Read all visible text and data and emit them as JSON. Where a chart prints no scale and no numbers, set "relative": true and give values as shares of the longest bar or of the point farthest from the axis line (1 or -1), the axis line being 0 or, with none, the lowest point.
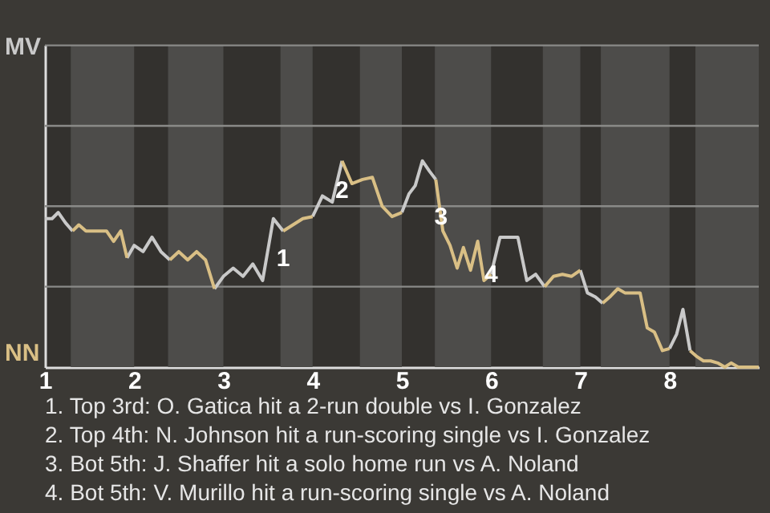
{
  "chart_data": {
    "type": "line",
    "relative": true,
    "x": [
      1,
      1.08,
      1.15,
      1.23,
      1.31,
      1.38,
      1.46,
      1.54,
      1.62,
      1.69,
      1.77,
      1.85,
      1.92,
      2,
      2.1,
      2.2,
      2.3,
      2.4,
      2.5,
      2.6,
      2.7,
      2.8,
      2.9,
      3,
      3.11,
      3.22,
      3.33,
      3.44,
      3.56,
      3.67,
      3.78,
      3.89,
      4,
      4.11,
      4.22,
      4.33,
      4.44,
      4.56,
      4.67,
      4.78,
      4.89,
      5,
      5.08,
      5.15,
      5.23,
      5.31,
      5.38,
      5.46,
      5.54,
      5.62,
      5.69,
      5.77,
      5.85,
      5.92,
      6,
      6.1,
      6.2,
      6.3,
      6.4,
      6.5,
      6.6,
      6.7,
      6.8,
      6.9,
      7,
      7.08,
      7.17,
      7.25,
      7.33,
      7.42,
      7.5,
      7.58,
      7.67,
      7.75,
      7.83,
      7.92,
      8,
      8.08,
      8.15,
      8.23,
      8.31,
      8.38,
      8.46,
      8.54,
      8.62,
      8.69,
      8.77,
      8.85,
      8.92,
      9
    ],
    "xlim": [
      1,
      9
    ],
    "xticks": [
      1,
      2,
      3,
      4,
      5,
      6,
      7,
      8
    ],
    "ref_lines": [
      {
        "axis": "y",
        "value": 0.39,
        "color": "#8a8a88"
      },
      {
        "axis": "y",
        "value": 0.78,
        "color": "#8a8a88"
      },
      {
        "axis": "y",
        "value": 1.17,
        "color": "#8a8a88"
      },
      {
        "axis": "y",
        "value": 1.56,
        "color": "#8a8a88"
      }
    ],
    "bands": [
      {
        "axis": "x",
        "from": 1.29,
        "to": 2,
        "color": "#4d4c4a"
      },
      {
        "axis": "x",
        "from": 2.38,
        "to": 3,
        "color": "#4d4c4a"
      },
      {
        "axis": "x",
        "from": 3.64,
        "to": 4,
        "color": "#4d4c4a"
      },
      {
        "axis": "x",
        "from": 4.53,
        "to": 5,
        "color": "#4d4c4a"
      },
      {
        "axis": "x",
        "from": 5.37,
        "to": 6,
        "color": "#4d4c4a"
      },
      {
        "axis": "x",
        "from": 6.58,
        "to": 7,
        "color": "#4d4c4a"
      },
      {
        "axis": "x",
        "from": 7.23,
        "to": 8,
        "color": "#4d4c4a"
      },
      {
        "axis": "x",
        "from": 8.29,
        "to": 9,
        "color": "#4d4c4a"
      }
    ],
    "series": [
      {
        "color": "#c9c9c9",
        "values": [
          0.72,
          0.72,
          0.75,
          0.7,
          0.66,
          null,
          null,
          null,
          null,
          null,
          null,
          null,
          0.53,
          0.59,
          0.56,
          0.63,
          0.56,
          0.52,
          null,
          null,
          null,
          null,
          0.38,
          0.44,
          0.48,
          0.44,
          0.5,
          0.42,
          0.72,
          0.66,
          null,
          null,
          0.73,
          0.83,
          0.8,
          1,
          null,
          null,
          null,
          null,
          null,
          0.75,
          0.84,
          0.88,
          1,
          0.95,
          0.91,
          null,
          null,
          null,
          null,
          null,
          null,
          null,
          0.45,
          0.63,
          0.63,
          0.63,
          0.42,
          0.45,
          0.39,
          null,
          null,
          null,
          0.47,
          0.36,
          0.34,
          0.31,
          null,
          null,
          null,
          null,
          null,
          null,
          null,
          null,
          0.09,
          0.16,
          0.28,
          0.08,
          null,
          null,
          null,
          null,
          null,
          null,
          null,
          null,
          null,
          null
        ]
      },
      {
        "color": "#d9bf85",
        "values": [
          null,
          null,
          null,
          null,
          0.66,
          0.69,
          0.66,
          0.66,
          0.66,
          0.66,
          0.61,
          0.66,
          0.53,
          null,
          null,
          null,
          null,
          0.52,
          0.56,
          0.52,
          0.56,
          0.52,
          0.38,
          null,
          null,
          null,
          null,
          null,
          null,
          0.66,
          0.69,
          0.72,
          0.73,
          null,
          null,
          1,
          0.89,
          0.91,
          0.92,
          0.78,
          0.73,
          0.75,
          null,
          null,
          null,
          null,
          0.91,
          0.66,
          0.59,
          0.48,
          0.58,
          0.47,
          0.61,
          0.42,
          0.45,
          null,
          null,
          null,
          null,
          null,
          0.39,
          0.44,
          0.45,
          0.44,
          0.47,
          null,
          null,
          0.31,
          0.34,
          0.38,
          0.36,
          0.36,
          0.36,
          0.19,
          0.17,
          0.08,
          0.09,
          null,
          null,
          0.08,
          0.05,
          0.03,
          0.03,
          0.02,
          0,
          0.02,
          0,
          0,
          0,
          0
        ]
      }
    ],
    "annotations": [
      "MV",
      "NN",
      {
        "text": "1",
        "x": 3.67,
        "y": 0.53
      },
      {
        "text": "2",
        "x": 4.33,
        "y": 0.86
      },
      {
        "text": "3",
        "x": 5.44,
        "y": 0.73
      },
      {
        "text": "4",
        "x": 6,
        "y": 0.45
      },
      "1. Top 3rd: O. Gatica hit a 2-run double vs I. Gonzalez",
      "2. Top 4th: N. Johnson hit a run-scoring single vs I. Gonzalez",
      "3. Bot 5th: J. Shaffer hit a solo home run vs A. Noland",
      "4. Bot 5th: V. Murillo hit a run-scoring single vs A. Noland"
    ]
  }
}
